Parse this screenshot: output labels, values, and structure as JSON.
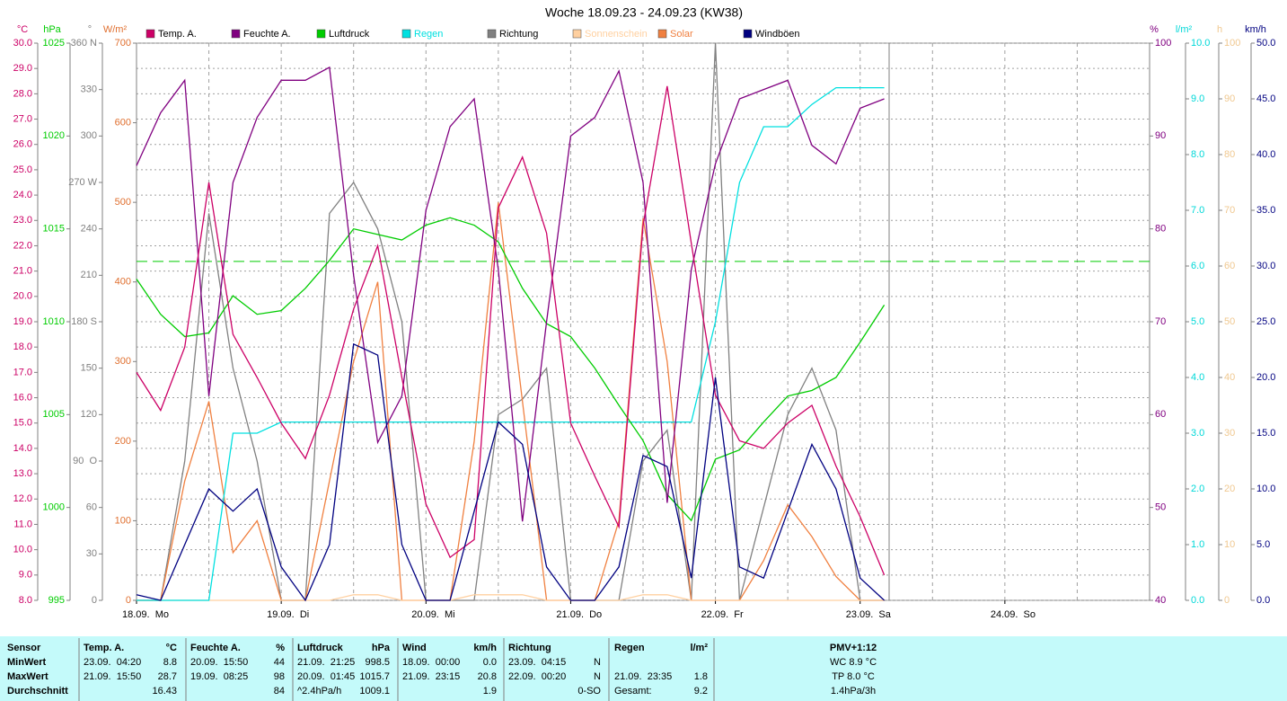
{
  "chart_data": {
    "type": "line",
    "title": "Woche 18.09.23 - 24.09.23 (KW38)",
    "xlim": [
      0,
      168
    ],
    "xticks": [
      {
        "value": 0,
        "label": "18.09.  Mo"
      },
      {
        "value": 24,
        "label": "19.09.  Di"
      },
      {
        "value": 48,
        "label": "20.09.  Mi"
      },
      {
        "value": 72,
        "label": "21.09.  Do"
      },
      {
        "value": 96,
        "label": "22.09.  Fr"
      },
      {
        "value": 120,
        "label": "23.09.  Sa"
      },
      {
        "value": 144,
        "label": "24.09.  So"
      }
    ],
    "xgrid": [
      12,
      36,
      60,
      84,
      108,
      132,
      156
    ],
    "grid": true,
    "axes": [
      {
        "label": "°C",
        "color": "#cc0066",
        "lim": [
          8,
          30
        ],
        "ticks": [
          {
            "value": 8,
            "label": "8.0"
          },
          {
            "value": 9,
            "label": "9.0"
          },
          {
            "value": 10,
            "label": "10.0"
          },
          {
            "value": 11,
            "label": "11.0"
          },
          {
            "value": 12,
            "label": "12.0"
          },
          {
            "value": 13,
            "label": "13.0"
          },
          {
            "value": 14,
            "label": "14.0"
          },
          {
            "value": 15,
            "label": "15.0"
          },
          {
            "value": 16,
            "label": "16.0"
          },
          {
            "value": 17,
            "label": "17.0"
          },
          {
            "value": 18,
            "label": "18.0"
          },
          {
            "value": 19,
            "label": "19.0"
          },
          {
            "value": 20,
            "label": "20.0"
          },
          {
            "value": 21,
            "label": "21.0"
          },
          {
            "value": 22,
            "label": "22.0"
          },
          {
            "value": 23,
            "label": "23.0"
          },
          {
            "value": 24,
            "label": "24.0"
          },
          {
            "value": 25,
            "label": "25.0"
          },
          {
            "value": 26,
            "label": "26.0"
          },
          {
            "value": 27,
            "label": "27.0"
          },
          {
            "value": 28,
            "label": "28.0"
          },
          {
            "value": 29,
            "label": "29.0"
          },
          {
            "value": 30,
            "label": "30.0"
          }
        ]
      },
      {
        "label": "hPa",
        "color": "#00cc00",
        "lim": [
          995,
          1025
        ],
        "ticks": [
          995,
          1000,
          1005,
          1010,
          1015,
          1020,
          1025
        ]
      },
      {
        "label": "°",
        "color": "#808080",
        "lim": [
          0,
          360
        ],
        "ticks": [
          0,
          30,
          60,
          {
            "value": 90,
            "label": "90  O"
          },
          120,
          150,
          {
            "value": 180,
            "label": "180 S"
          },
          210,
          240,
          {
            "value": 270,
            "label": "270 W"
          },
          300,
          330,
          {
            "value": 360,
            "label": "360 N"
          }
        ]
      },
      {
        "label": "W/m²",
        "color": "#e07030",
        "lim": [
          0,
          700
        ],
        "ticks": [
          0,
          100,
          200,
          300,
          400,
          500,
          600,
          700
        ]
      },
      {
        "label": "%",
        "color": "#800080",
        "lim": [
          40,
          100
        ],
        "ticks": [
          40,
          50,
          60,
          70,
          80,
          90,
          100
        ]
      },
      {
        "label": "l/m²",
        "color": "#00d8d8",
        "lim": [
          0,
          10
        ],
        "ticks": [
          {
            "value": 0,
            "label": "0.0"
          },
          {
            "value": 1,
            "label": "1.0"
          },
          {
            "value": 2,
            "label": "2.0"
          },
          {
            "value": 3,
            "label": "3.0"
          },
          {
            "value": 4,
            "label": "4.0"
          },
          {
            "value": 5,
            "label": "5.0"
          },
          {
            "value": 6,
            "label": "6.0"
          },
          {
            "value": 7,
            "label": "7.0"
          },
          {
            "value": 8,
            "label": "8.0"
          },
          {
            "value": 9,
            "label": "9.0"
          },
          {
            "value": 10,
            "label": "10.0"
          }
        ]
      },
      {
        "label": "h",
        "color": "#f0c890",
        "lim": [
          0,
          100
        ],
        "ticks": [
          0,
          10,
          20,
          30,
          40,
          50,
          60,
          70,
          80,
          90,
          100
        ]
      },
      {
        "label": "km/h",
        "color": "#000080",
        "lim": [
          0,
          50
        ],
        "ticks": [
          {
            "value": 0,
            "label": "0.0"
          },
          {
            "value": 5,
            "label": "5.0"
          },
          {
            "value": 10,
            "label": "10.0"
          },
          {
            "value": 15,
            "label": "15.0"
          },
          {
            "value": 20,
            "label": "20.0"
          },
          {
            "value": 25,
            "label": "25.0"
          },
          {
            "value": 30,
            "label": "30.0"
          },
          {
            "value": 35,
            "label": "35.0"
          },
          {
            "value": 40,
            "label": "40.0"
          },
          {
            "value": 45,
            "label": "45.0"
          },
          {
            "value": 50,
            "label": "50.0"
          }
        ]
      }
    ],
    "reference_line": {
      "value": 1013.25,
      "axis": 1,
      "color": "#00cc00"
    },
    "x": [
      0,
      4,
      8,
      12,
      16,
      20,
      24,
      28,
      32,
      36,
      40,
      44,
      48,
      52,
      56,
      60,
      64,
      68,
      72,
      76,
      80,
      84,
      88,
      92,
      96,
      100,
      104,
      108,
      112,
      116,
      120,
      124
    ],
    "series": [
      {
        "name": "Temp. A.",
        "color": "#cc0066",
        "axis": 0,
        "values": [
          17.0,
          15.5,
          18.0,
          24.5,
          18.5,
          16.8,
          15.0,
          13.6,
          16.1,
          19.5,
          22.0,
          16.8,
          11.8,
          9.7,
          10.4,
          23.5,
          25.5,
          22.5,
          15.0,
          12.9,
          10.9,
          22.8,
          28.3,
          22.1,
          16.1,
          14.3,
          14.0,
          15.0,
          15.7,
          13.3,
          11.3,
          9.0
        ]
      },
      {
        "name": "Feuchte A.",
        "color": "#800080",
        "axis": 4,
        "values": [
          86.8,
          92.5,
          96,
          62,
          85,
          92,
          96,
          96,
          97.4,
          75,
          57,
          62,
          82,
          91,
          94,
          75.6,
          48.5,
          70,
          90,
          92,
          97,
          85,
          50.5,
          75.6,
          87,
          94,
          95,
          96,
          89,
          87,
          93,
          94
        ]
      },
      {
        "name": "Luftdruck",
        "color": "#00cc00",
        "axis": 1,
        "values": [
          1012.3,
          1010.4,
          1009.2,
          1009.4,
          1011.4,
          1010.4,
          1010.6,
          1011.8,
          1013.3,
          1015.0,
          1014.7,
          1014.4,
          1015.2,
          1015.6,
          1015.2,
          1014.3,
          1011.8,
          1009.9,
          1009.2,
          1007.5,
          1005.5,
          1003.6,
          1000.7,
          999.3,
          1002.6,
          1003.1,
          1004.6,
          1006.0,
          1006.3,
          1007.0,
          1008.9,
          1010.9
        ]
      },
      {
        "name": "Regen",
        "color": "#00e0e0",
        "axis": 5,
        "values": [
          0,
          0,
          0,
          0,
          3.0,
          3.0,
          3.2,
          3.2,
          3.2,
          3.2,
          3.2,
          3.2,
          3.2,
          3.2,
          3.2,
          3.2,
          3.2,
          3.2,
          3.2,
          3.2,
          3.2,
          3.2,
          3.2,
          3.2,
          5.0,
          7.5,
          8.5,
          8.5,
          8.9,
          9.2,
          9.2,
          9.2
        ]
      },
      {
        "name": "Richtung",
        "color": "#808080",
        "axis": 2,
        "values": [
          0,
          0,
          90,
          250,
          150,
          90,
          0,
          0,
          250,
          270,
          240,
          180,
          0,
          0,
          0,
          120,
          130,
          150,
          0,
          0,
          0,
          90,
          110,
          0,
          360,
          0,
          60,
          120,
          150,
          110,
          0,
          0
        ]
      },
      {
        "name": "Sonnenschein",
        "color": "#ffd0a0",
        "axis": 6,
        "values": [
          0,
          0,
          0,
          0,
          0,
          0,
          0,
          0,
          0,
          1,
          1,
          0,
          0,
          0,
          1,
          1,
          1,
          0,
          0,
          0,
          0,
          1,
          1,
          0,
          0,
          0,
          0,
          0,
          0,
          0,
          0,
          0
        ]
      },
      {
        "name": "Solar",
        "color": "#f08040",
        "axis": 3,
        "values": [
          0,
          0,
          150,
          250,
          60,
          100,
          0,
          0,
          150,
          300,
          400,
          0,
          0,
          0,
          200,
          500,
          250,
          0,
          0,
          0,
          100,
          480,
          300,
          0,
          0,
          0,
          50,
          120,
          80,
          30,
          0,
          0
        ]
      },
      {
        "name": "Windböen",
        "color": "#000080",
        "axis": 7,
        "values": [
          0.5,
          0,
          5,
          10,
          8,
          10,
          3,
          0,
          5,
          23,
          22,
          5,
          0,
          0,
          8,
          16,
          14,
          3,
          0,
          0,
          3,
          13,
          12,
          2,
          20,
          3,
          2,
          8,
          14,
          10,
          2,
          0
        ]
      }
    ]
  },
  "table": {
    "rows": [
      [
        "Sensor",
        "Temp. A.",
        "°C",
        "Feuchte A.",
        "%",
        "Luftdruck",
        "hPa",
        "Wind",
        "km/h",
        "Richtung",
        null,
        "Regen",
        "l/m²",
        "PMV+1:12"
      ],
      [
        "MinWert",
        "23.09.  04:20",
        "8.8",
        "20.09.  15:50",
        "44",
        "21.09.  21:25",
        "998.5",
        "18.09.  00:00",
        "0.0",
        "23.09.  04:15",
        "N",
        null,
        null,
        "WC 8.9 °C"
      ],
      [
        "MaxWert",
        "21.09.  15:50",
        "28.7",
        "19.09.  08:25",
        "98",
        "20.09.  01:45",
        "1015.7",
        "21.09.  23:15",
        "20.8",
        "22.09.  00:20",
        "N",
        "21.09.  23:35",
        "1.8",
        "TP 8.0 °C"
      ],
      [
        "Durchschnitt",
        null,
        "16.43",
        null,
        "84",
        "^2.4hPa/h",
        "1009.1",
        null,
        "1.9",
        null,
        "0-SO",
        "Gesamt:",
        "9.2",
        "1.4hPa/3h"
      ]
    ]
  }
}
